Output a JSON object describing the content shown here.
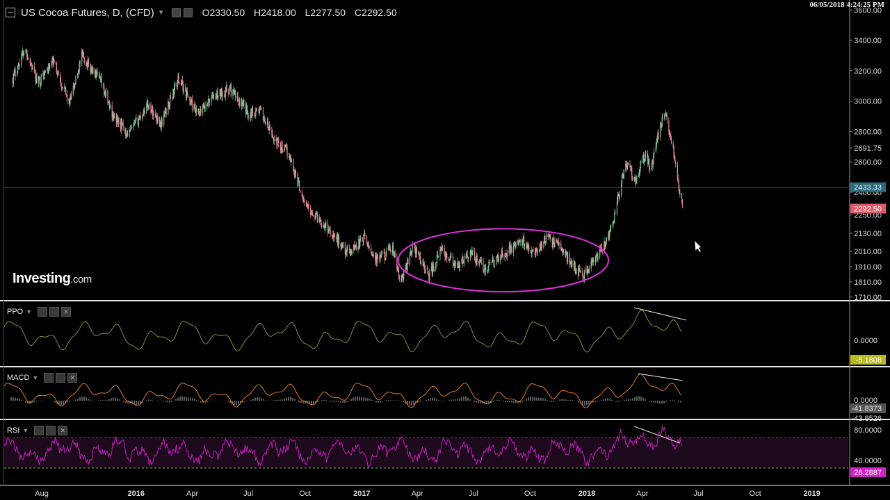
{
  "header": {
    "title": "US Cocoa Futures, D, (CFD)",
    "open": "O2330.50",
    "high": "H2418.00",
    "low": "L2277.50",
    "close": "C2292.50"
  },
  "timestamp": "06/05/2018 4:24:25 PM",
  "logo": {
    "main": "Investing",
    "suffix": ".com"
  },
  "colors": {
    "background": "#000000",
    "up_candle": "#7fc99a",
    "down_candle": "#e88a9a",
    "ellipse": "#e030e0",
    "ppo_line": "#8a8a30",
    "macd_line": "#e07a20",
    "rsi_line": "#c020b8",
    "hline": "#2e6a7a"
  },
  "chart_data": [
    {
      "type": "candlestick",
      "name": "US Cocoa Futures",
      "y_ticks": [
        "3600.00",
        "3400.00",
        "3200.00",
        "3000.00",
        "2800.00",
        "2691.75",
        "2600.00",
        "2400.00",
        "2250.00",
        "2130.00",
        "2010.00",
        "1910.00",
        "1810.00",
        "1710.00"
      ],
      "ylim": [
        1700,
        3620
      ],
      "x_ticks": [
        "Aug",
        "2016",
        "Apr",
        "Jul",
        "Oct",
        "2017",
        "Apr",
        "Jul",
        "Oct",
        "2018",
        "Apr",
        "Jul",
        "Oct",
        "2019"
      ],
      "horizontal_line": {
        "value": 2433.33,
        "label": "2433.33"
      },
      "last_price": {
        "value": 2292.5,
        "label": "2292.50"
      },
      "close_path": [
        [
          "2015-06-15",
          3150
        ],
        [
          "2015-07-05",
          3350
        ],
        [
          "2015-07-25",
          3120
        ],
        [
          "2015-08-20",
          3260
        ],
        [
          "2015-09-15",
          2980
        ],
        [
          "2015-10-05",
          3300
        ],
        [
          "2015-11-05",
          3120
        ],
        [
          "2015-11-25",
          2900
        ],
        [
          "2015-12-20",
          2780
        ],
        [
          "2016-01-20",
          2980
        ],
        [
          "2016-02-10",
          2850
        ],
        [
          "2016-03-10",
          3150
        ],
        [
          "2016-04-10",
          2900
        ],
        [
          "2016-05-01",
          3020
        ],
        [
          "2016-06-01",
          3080
        ],
        [
          "2016-07-01",
          2920
        ],
        [
          "2016-07-20",
          2940
        ],
        [
          "2016-08-10",
          2760
        ],
        [
          "2016-09-05",
          2650
        ],
        [
          "2016-10-01",
          2320
        ],
        [
          "2016-11-10",
          2150
        ],
        [
          "2016-12-10",
          2000
        ],
        [
          "2017-01-05",
          2100
        ],
        [
          "2017-01-25",
          1950
        ],
        [
          "2017-02-20",
          2030
        ],
        [
          "2017-03-05",
          1800
        ],
        [
          "2017-03-25",
          2050
        ],
        [
          "2017-04-20",
          1850
        ],
        [
          "2017-05-10",
          2020
        ],
        [
          "2017-06-05",
          1900
        ],
        [
          "2017-06-25",
          2010
        ],
        [
          "2017-07-20",
          1890
        ],
        [
          "2017-08-20",
          2000
        ],
        [
          "2017-09-20",
          2080
        ],
        [
          "2017-10-10",
          2000
        ],
        [
          "2017-10-25",
          2100
        ],
        [
          "2017-11-15",
          2060
        ],
        [
          "2017-12-10",
          1920
        ],
        [
          "2017-12-25",
          1850
        ],
        [
          "2018-01-10",
          1930
        ],
        [
          "2018-01-30",
          2050
        ],
        [
          "2018-02-15",
          2250
        ],
        [
          "2018-03-05",
          2600
        ],
        [
          "2018-03-20",
          2480
        ],
        [
          "2018-04-05",
          2650
        ],
        [
          "2018-04-15",
          2550
        ],
        [
          "2018-04-30",
          2850
        ],
        [
          "2018-05-10",
          2900
        ],
        [
          "2018-05-20",
          2700
        ],
        [
          "2018-06-05",
          2292.5
        ]
      ],
      "annotation": "ellipse"
    },
    {
      "type": "line",
      "name": "PPO",
      "value_label": "-5.1808",
      "y_tick": "0.0000"
    },
    {
      "type": "line",
      "name": "MACD",
      "value_labels": [
        "-41.8373",
        "-43.8526"
      ],
      "y_tick": "0.0000"
    },
    {
      "type": "line",
      "name": "RSI",
      "y_ticks": [
        "80.0000",
        "40.0000"
      ],
      "levels": [
        70,
        30
      ],
      "value_label": "26.2887"
    }
  ]
}
